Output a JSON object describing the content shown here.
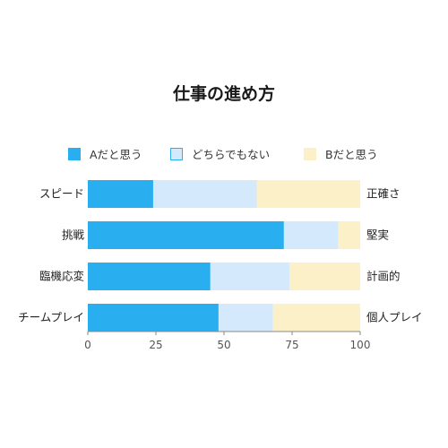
{
  "chart_data": {
    "type": "bar",
    "orientation": "horizontal",
    "stacked": true,
    "title": "仕事の進め方",
    "categories": [
      "スピード",
      "挑戦",
      "臨機応変",
      "チームプレイ"
    ],
    "right_labels": [
      "正確さ",
      "堅実",
      "計画的",
      "個人プレイ"
    ],
    "series": [
      {
        "name": "Aだと思う",
        "color": "#29aef0",
        "values": [
          24,
          72,
          45,
          48
        ]
      },
      {
        "name": "どちらでもない",
        "color": "#d4e9fb",
        "values": [
          38,
          20,
          29,
          20
        ]
      },
      {
        "name": "Bだと思う",
        "color": "#fcf0c8",
        "values": [
          38,
          8,
          26,
          32
        ]
      }
    ],
    "xlim": [
      0,
      100
    ],
    "xticks": [
      "0",
      "25",
      "50",
      "75",
      "100"
    ],
    "legend_position": "top",
    "grid": false
  }
}
